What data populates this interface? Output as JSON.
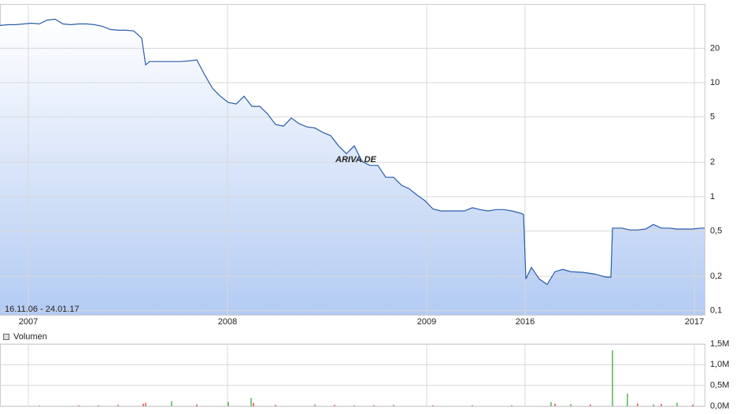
{
  "chart_data": [
    {
      "type": "line",
      "log_scale": true,
      "grid": true,
      "color": "#2a5caa",
      "fill_top": "#ffffff",
      "fill_bottom": "#b3cbf3",
      "date_range": "16.11.06 - 24.01.17",
      "watermark": "ARIVA.DE",
      "x": [
        0,
        2,
        4,
        6,
        8,
        10,
        12,
        14,
        16,
        18,
        20,
        22,
        24,
        26,
        28,
        30,
        32,
        34,
        36,
        37,
        38,
        40,
        42,
        44,
        46,
        48,
        50,
        52,
        54,
        56,
        58,
        60,
        62,
        64,
        66,
        68,
        70,
        72,
        74,
        76,
        78,
        80,
        82,
        84,
        86,
        88,
        90,
        92,
        94,
        96,
        98,
        100,
        102,
        104,
        106,
        108,
        110,
        112,
        114,
        116,
        118,
        120,
        122,
        124,
        126,
        128,
        130,
        132,
        133,
        133.6,
        135,
        137,
        139,
        141,
        143,
        145,
        148,
        151,
        154,
        155.2,
        155.6,
        158,
        160,
        162,
        164,
        166,
        168,
        170,
        172,
        174,
        176,
        178,
        179
      ],
      "values": [
        31.7,
        32.2,
        32.2,
        32.7,
        33.2,
        32.7,
        35.4,
        36.0,
        32.7,
        32.2,
        32.7,
        32.7,
        32.2,
        31.2,
        29.3,
        28.8,
        28.8,
        28.4,
        24.6,
        14.3,
        15.3,
        15.3,
        15.3,
        15.3,
        15.3,
        15.5,
        15.8,
        11.7,
        8.9,
        7.6,
        6.7,
        6.5,
        7.6,
        6.2,
        6.2,
        5.3,
        4.3,
        4.15,
        4.9,
        4.36,
        4.09,
        4.0,
        3.66,
        3.43,
        2.79,
        2.38,
        2.79,
        2.03,
        1.88,
        1.88,
        1.48,
        1.48,
        1.26,
        1.17,
        1.03,
        0.92,
        0.78,
        0.75,
        0.75,
        0.75,
        0.75,
        0.8,
        0.77,
        0.75,
        0.77,
        0.77,
        0.75,
        0.72,
        0.7,
        0.19,
        0.24,
        0.19,
        0.17,
        0.22,
        0.23,
        0.22,
        0.217,
        0.21,
        0.197,
        0.197,
        0.53,
        0.53,
        0.51,
        0.51,
        0.52,
        0.57,
        0.53,
        0.53,
        0.52,
        0.52,
        0.52,
        0.53,
        0.53
      ],
      "xlim": [
        0,
        179
      ],
      "xticks": [
        {
          "value": 7.2,
          "label": "2007"
        },
        {
          "value": 57.8,
          "label": "2008"
        },
        {
          "value": 108.4,
          "label": "2009"
        },
        {
          "value": 133.4,
          "label": "2016"
        },
        {
          "value": 176.4,
          "label": "2017"
        }
      ],
      "ylim": [
        0.092,
        49
      ],
      "yticks": [
        20,
        10,
        5,
        2,
        1,
        {
          "value": 0.5,
          "label": "0,5"
        },
        {
          "value": 0.2,
          "label": "0,2"
        },
        {
          "value": 0.1,
          "label": "0,1"
        }
      ]
    },
    {
      "type": "volume",
      "legend": "Volumen",
      "grid": true,
      "x": [
        10,
        20,
        25,
        30,
        36.4,
        37,
        43.6,
        50,
        58,
        63.8,
        64.4,
        70,
        80,
        85,
        90,
        95,
        100,
        110,
        120,
        130,
        140,
        141,
        145,
        150,
        155.6,
        159.4,
        162,
        166,
        168,
        172,
        176
      ],
      "values": [
        15000,
        20000,
        20000,
        30000,
        60000,
        80000,
        120000,
        40000,
        100000,
        200000,
        80000,
        30000,
        40000,
        30000,
        20000,
        25000,
        30000,
        20000,
        25000,
        20000,
        100000,
        60000,
        50000,
        40000,
        1350000,
        300000,
        60000,
        40000,
        50000,
        80000,
        40000
      ],
      "colors": [
        "#2ca02c",
        "#d62728",
        "#2ca02c",
        "#d62728",
        "#d62728",
        "#d62728",
        "#2ca02c",
        "#d62728",
        "#2ca02c",
        "#2ca02c",
        "#d62728",
        "#d62728",
        "#2ca02c",
        "#d62728",
        "#2ca02c",
        "#d62728",
        "#2ca02c",
        "#d62728",
        "#2ca02c",
        "#d62728",
        "#2ca02c",
        "#d62728",
        "#2ca02c",
        "#d62728",
        "#2ca02c",
        "#2ca02c",
        "#d62728",
        "#2ca02c",
        "#d62728",
        "#2ca02c",
        "#d62728"
      ],
      "xlim": [
        0,
        179
      ],
      "ylim": [
        0,
        1500000
      ],
      "yticks": [
        {
          "value": 0,
          "label": "0,0M"
        },
        {
          "value": 500000,
          "label": "0,5M"
        },
        {
          "value": 1000000,
          "label": "1,0M"
        },
        {
          "value": 1500000,
          "label": "1,5M"
        }
      ]
    }
  ]
}
